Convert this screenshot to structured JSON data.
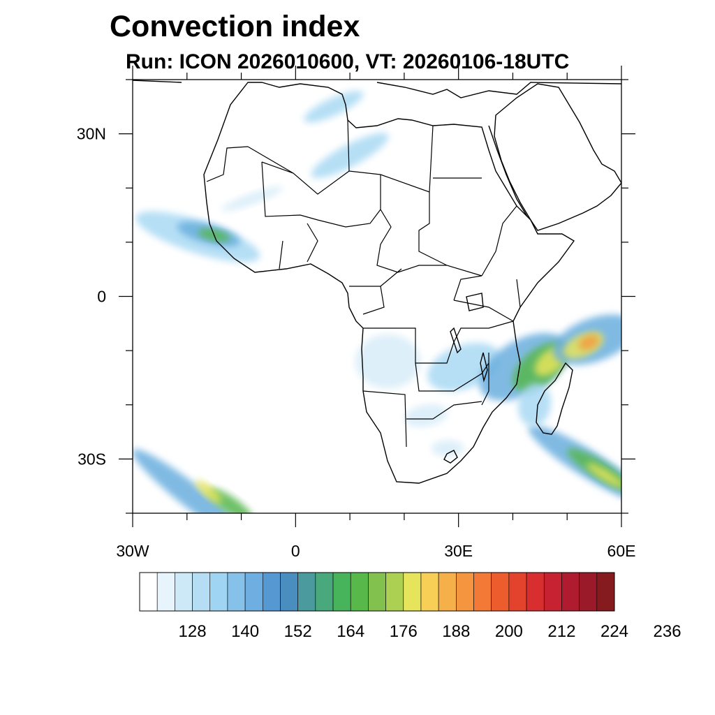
{
  "title": "Convection index",
  "subtitle": "Run: ICON 2026010600,  VT: 20260106-18UTC",
  "map": {
    "region": "Africa",
    "lon_range": [
      -30,
      60
    ],
    "lat_range": [
      -40,
      40
    ],
    "lat_ticks": [
      {
        "value": 30,
        "label": "30N"
      },
      {
        "value": 0,
        "label": "0"
      },
      {
        "value": -30,
        "label": "30S"
      }
    ],
    "lon_ticks": [
      {
        "value": -30,
        "label": "30W"
      },
      {
        "value": 0,
        "label": "0"
      },
      {
        "value": 30,
        "label": "30E"
      },
      {
        "value": 60,
        "label": "60E"
      }
    ],
    "blobs": [
      {
        "name": "blob-sw-atlantic-1",
        "lon": -19,
        "lat": -37,
        "rlon": 14,
        "rlat": 2.2,
        "rot": 38,
        "level": "blue"
      },
      {
        "name": "blob-sw-atlantic-2",
        "lon": -12,
        "lat": -38.5,
        "rlon": 5,
        "rlat": 1.5,
        "rot": 35,
        "level": "green"
      },
      {
        "name": "blob-sw-atlantic-3",
        "lon": -16,
        "lat": -36,
        "rlon": 3,
        "rlat": 1,
        "rot": 40,
        "level": "yellow"
      },
      {
        "name": "blob-west-africa-1",
        "lon": -18,
        "lat": 11,
        "rlon": 12,
        "rlat": 3,
        "rot": 18,
        "level": "lightblue"
      },
      {
        "name": "blob-west-africa-2",
        "lon": -16,
        "lat": 11.5,
        "rlon": 6,
        "rlat": 1.8,
        "rot": 15,
        "level": "blue"
      },
      {
        "name": "blob-west-africa-3",
        "lon": -15,
        "lat": 11.3,
        "rlon": 3,
        "rlat": 1,
        "rot": 12,
        "level": "green"
      },
      {
        "name": "blob-sahara-1",
        "lon": 10,
        "lat": 26,
        "rlon": 8,
        "rlat": 2,
        "rot": -28,
        "level": "lightblue"
      },
      {
        "name": "blob-sahara-2",
        "lon": 7,
        "lat": 35,
        "rlon": 6,
        "rlat": 1.6,
        "rot": -25,
        "level": "lightblue"
      },
      {
        "name": "blob-mauritania",
        "lon": -8,
        "lat": 18,
        "rlon": 6,
        "rlat": 1,
        "rot": -20,
        "level": "pale"
      },
      {
        "name": "blob-angola-1",
        "lon": 17,
        "lat": -12,
        "rlon": 6,
        "rlat": 5,
        "rot": 0,
        "level": "pale"
      },
      {
        "name": "blob-zambia-1",
        "lon": 31,
        "lat": -13,
        "rlon": 7,
        "rlat": 4,
        "rot": -20,
        "level": "lightblue"
      },
      {
        "name": "blob-mozambique-1",
        "lon": 42,
        "lat": -13,
        "rlon": 9,
        "rlat": 5,
        "rot": -30,
        "level": "blue"
      },
      {
        "name": "blob-mozambique-2",
        "lon": 45,
        "lat": -13,
        "rlon": 6,
        "rlat": 3.2,
        "rot": -40,
        "level": "green"
      },
      {
        "name": "blob-mozambique-3",
        "lon": 47,
        "lat": -12,
        "rlon": 3.5,
        "rlat": 2,
        "rot": -40,
        "level": "yellow"
      },
      {
        "name": "blob-indian-1",
        "lon": 55,
        "lat": -8,
        "rlon": 8,
        "rlat": 4,
        "rot": -20,
        "level": "blue"
      },
      {
        "name": "blob-indian-2",
        "lon": 53,
        "lat": -9,
        "rlon": 4,
        "rlat": 2,
        "rot": -25,
        "level": "yellow"
      },
      {
        "name": "blob-indian-3",
        "lon": 54,
        "lat": -8.5,
        "rlon": 2,
        "rlat": 1.2,
        "rot": -25,
        "level": "orange"
      },
      {
        "name": "blob-se-band-1",
        "lon": 54,
        "lat": -31,
        "rlon": 13,
        "rlat": 2.5,
        "rot": 32,
        "level": "blue"
      },
      {
        "name": "blob-se-band-2",
        "lon": 56,
        "lat": -32,
        "rlon": 7,
        "rlat": 1.6,
        "rot": 32,
        "level": "green"
      },
      {
        "name": "blob-se-band-3",
        "lon": 57,
        "lat": -33,
        "rlon": 4,
        "rlat": 0.9,
        "rot": 32,
        "level": "yellow"
      },
      {
        "name": "blob-madagascar",
        "lon": 44,
        "lat": -20,
        "rlon": 3,
        "rlat": 4,
        "rot": 10,
        "level": "lightblue"
      },
      {
        "name": "blob-botswana",
        "lon": 24,
        "lat": -22,
        "rlon": 4,
        "rlat": 2,
        "rot": -10,
        "level": "pale"
      },
      {
        "name": "blob-south-africa",
        "lon": 28,
        "lat": -28,
        "rlon": 3,
        "rlat": 1.5,
        "rot": 0,
        "level": "pale"
      }
    ]
  },
  "colorbar": {
    "colors": [
      "#ffffff",
      "#e8f4fb",
      "#cde9f7",
      "#b5def5",
      "#9fd4f3",
      "#86c1ea",
      "#6faee0",
      "#5698d1",
      "#4a8dbf",
      "#4a9a9e",
      "#49a97c",
      "#47b35a",
      "#58b84a",
      "#83c14f",
      "#acd051",
      "#e6e45a",
      "#f7cf57",
      "#f6b04a",
      "#f59540",
      "#f27a36",
      "#ec5c2d",
      "#e3432c",
      "#d82e2f",
      "#c72231",
      "#b01c2f",
      "#9b1a29",
      "#851a1f"
    ],
    "labels": [
      "128",
      "140",
      "152",
      "164",
      "176",
      "188",
      "200",
      "212",
      "224",
      "236"
    ]
  },
  "level_colors": {
    "pale": "#d7ecf8",
    "lightblue": "#a9d9f3",
    "blue": "#6aaede",
    "green": "#56b64d",
    "yellow": "#e6e45a",
    "orange": "#f39a3f"
  }
}
